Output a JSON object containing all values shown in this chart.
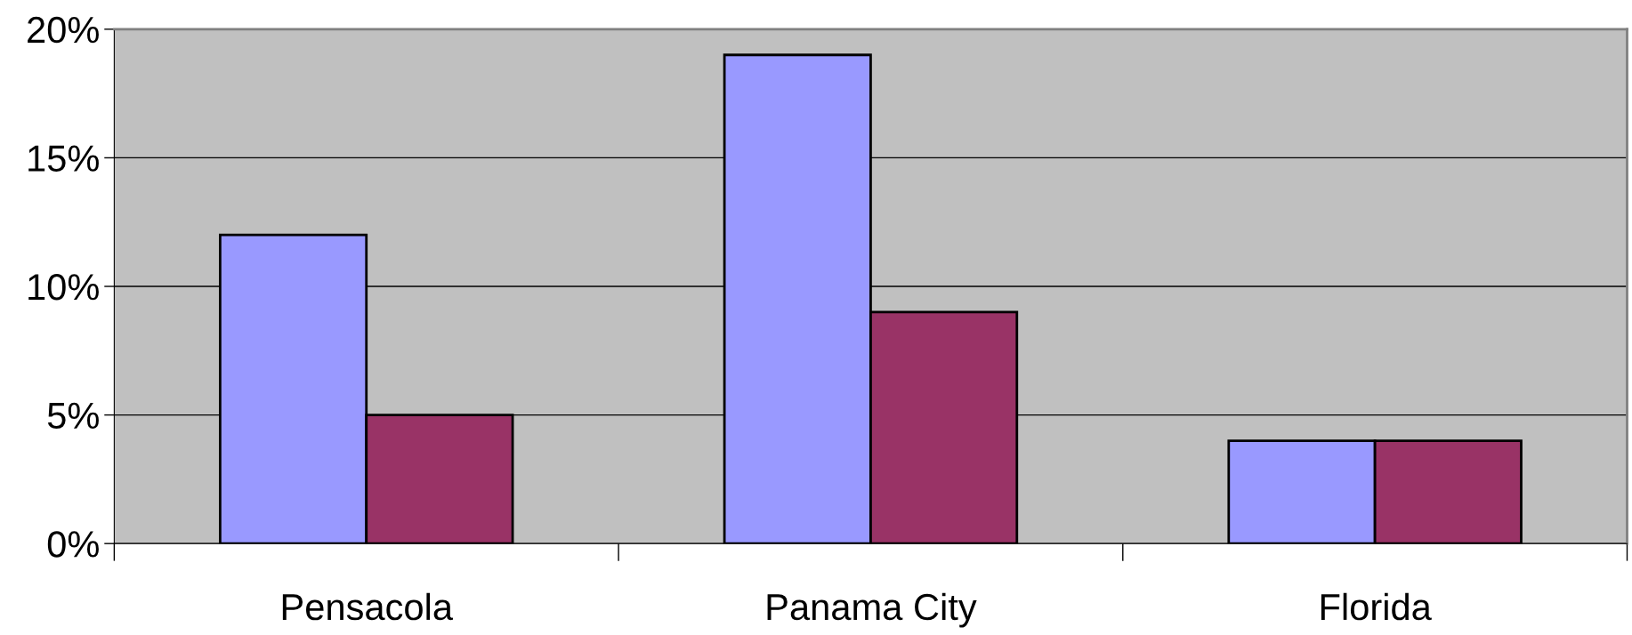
{
  "chart_data": {
    "type": "bar",
    "categories": [
      "Pensacola",
      "Panama City",
      "Florida"
    ],
    "series": [
      {
        "color": "#9999ff",
        "values": [
          12,
          19,
          4
        ]
      },
      {
        "color": "#993366",
        "values": [
          5,
          9,
          4
        ]
      }
    ],
    "ylim": [
      0,
      20
    ],
    "yticks": [
      {
        "value": 0,
        "label": "0%"
      },
      {
        "value": 5,
        "label": "5%"
      },
      {
        "value": 10,
        "label": "10%"
      },
      {
        "value": 15,
        "label": "15%"
      },
      {
        "value": 20,
        "label": "20%"
      }
    ],
    "grid": "y"
  }
}
